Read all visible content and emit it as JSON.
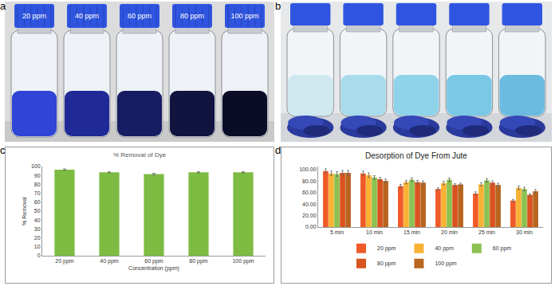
{
  "photos": [
    {
      "panel": "a",
      "texts": [
        "20 ppm",
        "40 ppm",
        "60 ppm",
        "80 ppm",
        "100 ppm"
      ]
    },
    {
      "panel": "b"
    }
  ],
  "chart_data": [
    {
      "panel": "c",
      "type": "bar",
      "title": "% Removal of Dye",
      "x_label": "Concentration (ppm)",
      "y_label": "% Removal",
      "categories": [
        "20 ppm",
        "40 ppm",
        "60 ppm",
        "80 ppm",
        "100 ppm"
      ],
      "values": [
        96.5,
        93.5,
        91.5,
        93.5,
        93.5
      ],
      "errors": [
        0.8,
        0.8,
        0.9,
        0.8,
        0.8
      ],
      "color": "#7dbb42",
      "ylim": [
        0,
        100
      ],
      "yticks": [
        0,
        10,
        20,
        30,
        40,
        50,
        60,
        70,
        80,
        90,
        100
      ],
      "grid": false
    },
    {
      "panel": "d",
      "type": "bar",
      "title": "Desorption of Dye From Jute",
      "categories": [
        "5 min",
        "10 min",
        "15 min",
        "20 min",
        "25 min",
        "30 min"
      ],
      "series": [
        {
          "name": "20 ppm",
          "color": "#f05a28",
          "values": [
            97,
            93,
            71,
            66,
            58,
            46
          ],
          "errors": [
            4,
            4,
            3,
            2,
            3,
            2
          ]
        },
        {
          "name": "40 ppm",
          "color": "#f9b233",
          "values": [
            93,
            90,
            78,
            76,
            74,
            68
          ],
          "errors": [
            4,
            4,
            3,
            3,
            3,
            3
          ]
        },
        {
          "name": "60 ppm",
          "color": "#8cc152",
          "values": [
            92,
            86,
            82,
            82,
            81,
            66
          ],
          "errors": [
            4,
            3,
            3,
            3,
            3,
            3
          ]
        },
        {
          "name": "80 ppm",
          "color": "#d9531e",
          "values": [
            94,
            83,
            78,
            73,
            77,
            56
          ],
          "errors": [
            4,
            3,
            3,
            2,
            3,
            2
          ]
        },
        {
          "name": "100 ppm",
          "color": "#b8651f",
          "values": [
            94,
            80,
            77,
            74,
            73,
            62
          ],
          "errors": [
            4,
            3,
            3,
            2,
            3,
            3
          ]
        }
      ],
      "ylim": [
        0,
        105
      ],
      "yticks": [
        {
          "value": 0,
          "label": "0.00"
        },
        {
          "value": 20,
          "label": "20.00"
        },
        {
          "value": 40,
          "label": "40.00"
        },
        {
          "value": 60,
          "label": "60.00"
        },
        {
          "value": 80,
          "label": "80.00"
        },
        {
          "value": 100,
          "label": "100.00"
        }
      ],
      "grid": false,
      "legend": "bottom"
    }
  ]
}
